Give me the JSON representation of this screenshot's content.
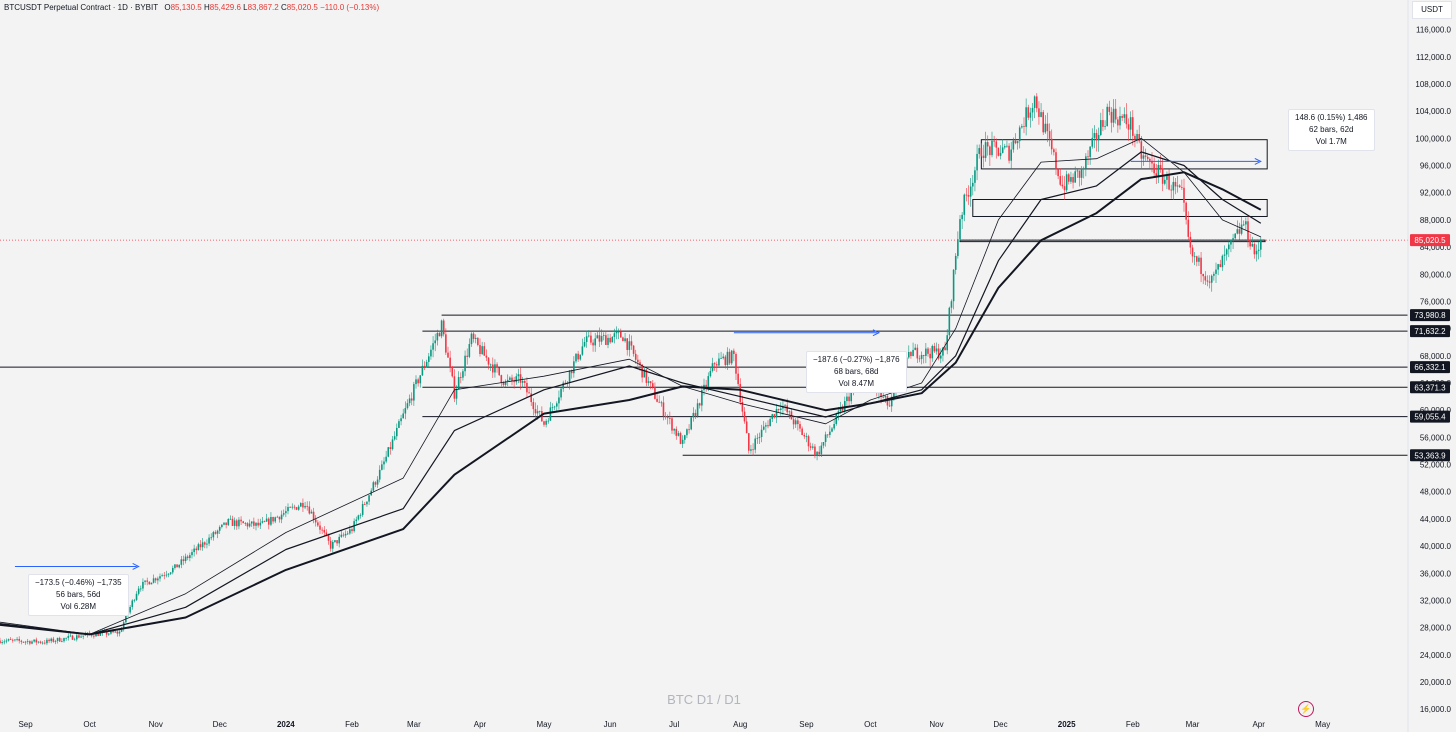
{
  "header": {
    "symbol": "BTCUSDT Perpetual Contract · 1D · BYBIT",
    "open_label": "O",
    "open": "85,130.5",
    "high_label": "H",
    "high": "85,429.6",
    "low_label": "L",
    "low": "83,867.2",
    "close_label": "C",
    "close": "85,020.5",
    "change": "−110.0 (−0.13%)"
  },
  "currency": "USDT",
  "watermark": "BTC D1 / D1",
  "chart_data": {
    "type": "candlestick",
    "y_axis": {
      "ticks": [
        16000,
        20000,
        24000,
        28000,
        32000,
        36000,
        40000,
        44000,
        48000,
        52000,
        56000,
        60000,
        64000,
        68000,
        72000,
        76000,
        80000,
        84000,
        88000,
        92000,
        96000,
        100000,
        104000,
        108000,
        112000,
        116000
      ],
      "tick_labels": [
        "16,000.0",
        "20,000.0",
        "24,000.0",
        "28,000.0",
        "32,000.0",
        "36,000.0",
        "40,000.0",
        "44,000.0",
        "48,000.0",
        "52,000.0",
        "56,000.0",
        "60,000.0",
        "64,000.0",
        "68,000.0",
        "72,000.0",
        "76,000.0",
        "80,000.0",
        "84,000.0",
        "88,000.0",
        "92,000.0",
        "96,000.0",
        "100,000.0",
        "104,000.0",
        "108,000.0",
        "112,000.0",
        "116,000.0"
      ],
      "range": [
        15000,
        118000
      ]
    },
    "x_axis": {
      "labels": [
        "Sep",
        "Oct",
        "Nov",
        "Dec",
        "2024",
        "Feb",
        "Mar",
        "Apr",
        "May",
        "Jun",
        "Jul",
        "Aug",
        "Sep",
        "Oct",
        "Nov",
        "Dec",
        "2025",
        "Feb",
        "Mar",
        "Apr",
        "May"
      ],
      "dates": [
        "2023-09-01",
        "2023-10-01",
        "2023-11-01",
        "2023-12-01",
        "2024-01-01",
        "2024-02-01",
        "2024-03-01",
        "2024-04-01",
        "2024-05-01",
        "2024-06-01",
        "2024-07-01",
        "2024-08-01",
        "2024-09-01",
        "2024-10-01",
        "2024-11-01",
        "2024-12-01",
        "2025-01-01",
        "2025-02-01",
        "2025-03-01",
        "2025-04-01",
        "2025-05-01"
      ],
      "range": [
        "2023-08-20",
        "2025-06-10"
      ]
    },
    "colors": {
      "up": "#26a69a",
      "up_candle": "#089981",
      "down": "#f23645",
      "ma": "#131722",
      "price_line": "#f23645",
      "arrow": "#2962ff"
    },
    "last_price": {
      "value": 85020.5,
      "label": "85,020.5"
    },
    "price_path": [
      [
        "2023-08-20",
        26100
      ],
      [
        "2023-09-10",
        25900
      ],
      [
        "2023-10-01",
        27000
      ],
      [
        "2023-10-15",
        27300
      ],
      [
        "2023-10-24",
        34000
      ],
      [
        "2023-11-10",
        36800
      ],
      [
        "2023-12-05",
        43500
      ],
      [
        "2023-12-20",
        43000
      ],
      [
        "2024-01-10",
        46500
      ],
      [
        "2024-01-22",
        40000
      ],
      [
        "2024-02-01",
        42500
      ],
      [
        "2024-02-15",
        51500
      ],
      [
        "2024-02-28",
        61500
      ],
      [
        "2024-03-05",
        66000
      ],
      [
        "2024-03-14",
        72500
      ],
      [
        "2024-03-20",
        62500
      ],
      [
        "2024-03-28",
        70500
      ],
      [
        "2024-04-13",
        64000
      ],
      [
        "2024-04-20",
        64500
      ],
      [
        "2024-05-01",
        58000
      ],
      [
        "2024-05-20",
        70000
      ],
      [
        "2024-06-07",
        71000
      ],
      [
        "2024-06-24",
        61000
      ],
      [
        "2024-07-05",
        55000
      ],
      [
        "2024-07-20",
        67000
      ],
      [
        "2024-07-29",
        68000
      ],
      [
        "2024-08-05",
        54000
      ],
      [
        "2024-08-20",
        61000
      ],
      [
        "2024-09-06",
        53500
      ],
      [
        "2024-09-27",
        65500
      ],
      [
        "2024-10-10",
        60500
      ],
      [
        "2024-10-20",
        68500
      ],
      [
        "2024-11-05",
        68500
      ],
      [
        "2024-11-12",
        88500
      ],
      [
        "2024-11-22",
        98500
      ],
      [
        "2024-12-05",
        98000
      ],
      [
        "2024-12-17",
        106000
      ],
      [
        "2024-12-30",
        93000
      ],
      [
        "2025-01-08",
        95000
      ],
      [
        "2025-01-20",
        104000
      ],
      [
        "2025-01-31",
        102000
      ],
      [
        "2025-02-05",
        97500
      ],
      [
        "2025-02-24",
        91500
      ],
      [
        "2025-02-28",
        83000
      ],
      [
        "2025-03-10",
        79000
      ],
      [
        "2025-03-25",
        87500
      ],
      [
        "2025-03-31",
        82500
      ],
      [
        "2025-04-02",
        85020
      ]
    ],
    "moving_averages": [
      {
        "width": 0.8,
        "points": [
          [
            "2023-08-20",
            28800
          ],
          [
            "2023-10-01",
            27000
          ],
          [
            "2023-11-15",
            33000
          ],
          [
            "2024-01-01",
            42000
          ],
          [
            "2024-02-25",
            50000
          ],
          [
            "2024-03-20",
            63000
          ],
          [
            "2024-05-01",
            65000
          ],
          [
            "2024-06-10",
            67500
          ],
          [
            "2024-07-05",
            63500
          ],
          [
            "2024-08-01",
            61000
          ],
          [
            "2024-09-10",
            58000
          ],
          [
            "2024-10-01",
            61500
          ],
          [
            "2024-10-25",
            64000
          ],
          [
            "2024-11-10",
            72000
          ],
          [
            "2024-11-30",
            88000
          ],
          [
            "2024-12-20",
            96500
          ],
          [
            "2025-01-15",
            97000
          ],
          [
            "2025-02-05",
            100000
          ],
          [
            "2025-02-25",
            95000
          ],
          [
            "2025-03-15",
            88000
          ],
          [
            "2025-04-02",
            85500
          ]
        ]
      },
      {
        "width": 1.2,
        "points": [
          [
            "2023-08-20",
            28600
          ],
          [
            "2023-10-01",
            27000
          ],
          [
            "2023-11-15",
            31000
          ],
          [
            "2024-01-01",
            39500
          ],
          [
            "2024-02-25",
            45500
          ],
          [
            "2024-03-20",
            57000
          ],
          [
            "2024-05-01",
            63000
          ],
          [
            "2024-06-10",
            66500
          ],
          [
            "2024-07-05",
            64000
          ],
          [
            "2024-08-01",
            62000
          ],
          [
            "2024-09-10",
            59000
          ],
          [
            "2024-10-01",
            61000
          ],
          [
            "2024-10-25",
            63000
          ],
          [
            "2024-11-10",
            68000
          ],
          [
            "2024-11-30",
            82000
          ],
          [
            "2024-12-20",
            91000
          ],
          [
            "2025-01-15",
            93000
          ],
          [
            "2025-02-05",
            98000
          ],
          [
            "2025-02-25",
            96000
          ],
          [
            "2025-03-15",
            91000
          ],
          [
            "2025-04-02",
            87500
          ]
        ]
      },
      {
        "width": 2.0,
        "points": [
          [
            "2023-08-20",
            28400
          ],
          [
            "2023-10-01",
            27000
          ],
          [
            "2023-11-15",
            29500
          ],
          [
            "2024-01-01",
            36500
          ],
          [
            "2024-02-25",
            42500
          ],
          [
            "2024-03-20",
            50500
          ],
          [
            "2024-05-01",
            59500
          ],
          [
            "2024-06-10",
            61500
          ],
          [
            "2024-07-05",
            63500
          ],
          [
            "2024-08-01",
            63000
          ],
          [
            "2024-09-10",
            60000
          ],
          [
            "2024-10-01",
            61000
          ],
          [
            "2024-10-25",
            62500
          ],
          [
            "2024-11-10",
            67000
          ],
          [
            "2024-11-30",
            78000
          ],
          [
            "2024-12-20",
            85000
          ],
          [
            "2025-01-15",
            89000
          ],
          [
            "2025-02-05",
            94000
          ],
          [
            "2025-02-25",
            95000
          ],
          [
            "2025-03-15",
            92500
          ],
          [
            "2025-04-02",
            89500
          ]
        ]
      }
    ],
    "levels": [
      {
        "value": 73980.8,
        "label": "73,980.8",
        "from": "2024-03-14"
      },
      {
        "value": 71632.2,
        "label": "71,632.2",
        "from": "2024-03-05"
      },
      {
        "value": 66332.1,
        "label": "66,332.1",
        "from": "2023-08-20"
      },
      {
        "value": 63371.3,
        "label": "63,371.3",
        "from": "2024-03-05"
      },
      {
        "value": 59055.4,
        "label": "59,055.4",
        "from": "2024-03-05"
      },
      {
        "value": 53363.9,
        "label": "53,363.9",
        "from": "2024-07-05"
      }
    ],
    "zones": [
      {
        "from": "2024-11-22",
        "to": "2025-04-05",
        "high": 99800,
        "low": 95500
      },
      {
        "from": "2024-11-18",
        "to": "2025-04-05",
        "high": 91000,
        "low": 88500
      },
      {
        "from": "2024-11-12",
        "to": "2025-04-04",
        "high": 85020.5,
        "low": 84800
      }
    ],
    "range_arrows": [
      {
        "from": "2023-08-27",
        "to": "2023-10-24",
        "value": 37000
      },
      {
        "from": "2024-07-29",
        "to": "2024-10-05",
        "value": 71400
      },
      {
        "from": "2025-01-31",
        "to": "2025-04-02",
        "value": 96600
      }
    ],
    "measure_boxes": [
      {
        "lines": [
          "−173.5 (−0.46%) −1,735",
          "56 bars, 56d",
          "Vol 6.28M"
        ]
      },
      {
        "lines": [
          "−187.6 (−0.27%) −1,876",
          "68 bars, 68d",
          "Vol 8.47M"
        ]
      },
      {
        "lines": [
          "148.6 (0.15%) 1,486",
          "62 bars, 62d",
          "Vol 1.7M"
        ]
      }
    ]
  }
}
